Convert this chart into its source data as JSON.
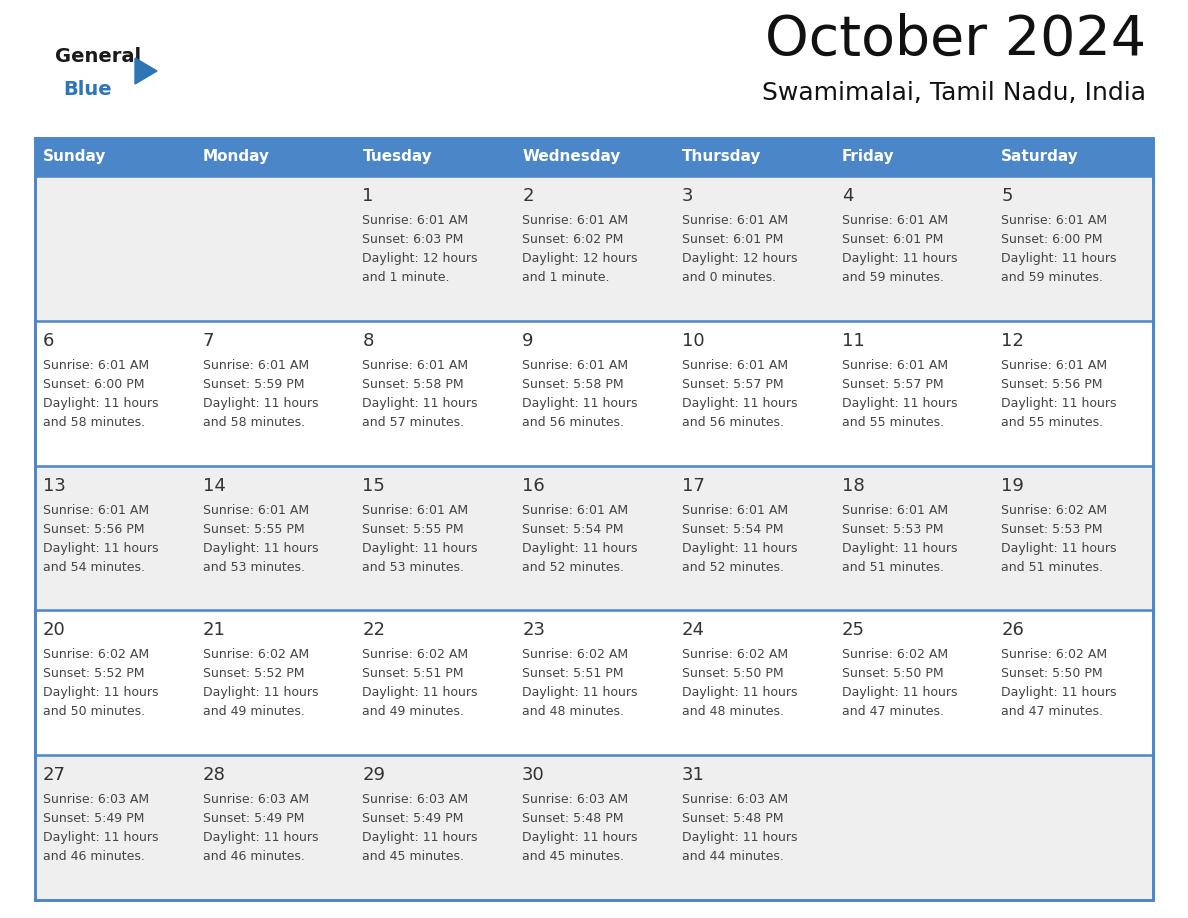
{
  "title": "October 2024",
  "subtitle": "Swamimalai, Tamil Nadu, India",
  "days_of_week": [
    "Sunday",
    "Monday",
    "Tuesday",
    "Wednesday",
    "Thursday",
    "Friday",
    "Saturday"
  ],
  "header_bg": "#4A86C8",
  "header_text": "#FFFFFF",
  "cell_bg_row0": "#EFEFEF",
  "cell_bg_row1": "#FFFFFF",
  "cell_bg_row2": "#EFEFEF",
  "cell_bg_row3": "#FFFFFF",
  "cell_bg_row4": "#EFEFEF",
  "cell_border": "#4A86C8",
  "day_num_color": "#333333",
  "cell_text_color": "#444444",
  "title_color": "#111111",
  "subtitle_color": "#111111",
  "logo_general_color": "#1a1a1a",
  "logo_blue_color": "#2E75B6",
  "calendar": [
    [
      null,
      null,
      {
        "day": "1",
        "sunrise": "6:01 AM",
        "sunset": "6:03 PM",
        "daylight_line1": "Daylight: 12 hours",
        "daylight_line2": "and 1 minute."
      },
      {
        "day": "2",
        "sunrise": "6:01 AM",
        "sunset": "6:02 PM",
        "daylight_line1": "Daylight: 12 hours",
        "daylight_line2": "and 1 minute."
      },
      {
        "day": "3",
        "sunrise": "6:01 AM",
        "sunset": "6:01 PM",
        "daylight_line1": "Daylight: 12 hours",
        "daylight_line2": "and 0 minutes."
      },
      {
        "day": "4",
        "sunrise": "6:01 AM",
        "sunset": "6:01 PM",
        "daylight_line1": "Daylight: 11 hours",
        "daylight_line2": "and 59 minutes."
      },
      {
        "day": "5",
        "sunrise": "6:01 AM",
        "sunset": "6:00 PM",
        "daylight_line1": "Daylight: 11 hours",
        "daylight_line2": "and 59 minutes."
      }
    ],
    [
      {
        "day": "6",
        "sunrise": "6:01 AM",
        "sunset": "6:00 PM",
        "daylight_line1": "Daylight: 11 hours",
        "daylight_line2": "and 58 minutes."
      },
      {
        "day": "7",
        "sunrise": "6:01 AM",
        "sunset": "5:59 PM",
        "daylight_line1": "Daylight: 11 hours",
        "daylight_line2": "and 58 minutes."
      },
      {
        "day": "8",
        "sunrise": "6:01 AM",
        "sunset": "5:58 PM",
        "daylight_line1": "Daylight: 11 hours",
        "daylight_line2": "and 57 minutes."
      },
      {
        "day": "9",
        "sunrise": "6:01 AM",
        "sunset": "5:58 PM",
        "daylight_line1": "Daylight: 11 hours",
        "daylight_line2": "and 56 minutes."
      },
      {
        "day": "10",
        "sunrise": "6:01 AM",
        "sunset": "5:57 PM",
        "daylight_line1": "Daylight: 11 hours",
        "daylight_line2": "and 56 minutes."
      },
      {
        "day": "11",
        "sunrise": "6:01 AM",
        "sunset": "5:57 PM",
        "daylight_line1": "Daylight: 11 hours",
        "daylight_line2": "and 55 minutes."
      },
      {
        "day": "12",
        "sunrise": "6:01 AM",
        "sunset": "5:56 PM",
        "daylight_line1": "Daylight: 11 hours",
        "daylight_line2": "and 55 minutes."
      }
    ],
    [
      {
        "day": "13",
        "sunrise": "6:01 AM",
        "sunset": "5:56 PM",
        "daylight_line1": "Daylight: 11 hours",
        "daylight_line2": "and 54 minutes."
      },
      {
        "day": "14",
        "sunrise": "6:01 AM",
        "sunset": "5:55 PM",
        "daylight_line1": "Daylight: 11 hours",
        "daylight_line2": "and 53 minutes."
      },
      {
        "day": "15",
        "sunrise": "6:01 AM",
        "sunset": "5:55 PM",
        "daylight_line1": "Daylight: 11 hours",
        "daylight_line2": "and 53 minutes."
      },
      {
        "day": "16",
        "sunrise": "6:01 AM",
        "sunset": "5:54 PM",
        "daylight_line1": "Daylight: 11 hours",
        "daylight_line2": "and 52 minutes."
      },
      {
        "day": "17",
        "sunrise": "6:01 AM",
        "sunset": "5:54 PM",
        "daylight_line1": "Daylight: 11 hours",
        "daylight_line2": "and 52 minutes."
      },
      {
        "day": "18",
        "sunrise": "6:01 AM",
        "sunset": "5:53 PM",
        "daylight_line1": "Daylight: 11 hours",
        "daylight_line2": "and 51 minutes."
      },
      {
        "day": "19",
        "sunrise": "6:02 AM",
        "sunset": "5:53 PM",
        "daylight_line1": "Daylight: 11 hours",
        "daylight_line2": "and 51 minutes."
      }
    ],
    [
      {
        "day": "20",
        "sunrise": "6:02 AM",
        "sunset": "5:52 PM",
        "daylight_line1": "Daylight: 11 hours",
        "daylight_line2": "and 50 minutes."
      },
      {
        "day": "21",
        "sunrise": "6:02 AM",
        "sunset": "5:52 PM",
        "daylight_line1": "Daylight: 11 hours",
        "daylight_line2": "and 49 minutes."
      },
      {
        "day": "22",
        "sunrise": "6:02 AM",
        "sunset": "5:51 PM",
        "daylight_line1": "Daylight: 11 hours",
        "daylight_line2": "and 49 minutes."
      },
      {
        "day": "23",
        "sunrise": "6:02 AM",
        "sunset": "5:51 PM",
        "daylight_line1": "Daylight: 11 hours",
        "daylight_line2": "and 48 minutes."
      },
      {
        "day": "24",
        "sunrise": "6:02 AM",
        "sunset": "5:50 PM",
        "daylight_line1": "Daylight: 11 hours",
        "daylight_line2": "and 48 minutes."
      },
      {
        "day": "25",
        "sunrise": "6:02 AM",
        "sunset": "5:50 PM",
        "daylight_line1": "Daylight: 11 hours",
        "daylight_line2": "and 47 minutes."
      },
      {
        "day": "26",
        "sunrise": "6:02 AM",
        "sunset": "5:50 PM",
        "daylight_line1": "Daylight: 11 hours",
        "daylight_line2": "and 47 minutes."
      }
    ],
    [
      {
        "day": "27",
        "sunrise": "6:03 AM",
        "sunset": "5:49 PM",
        "daylight_line1": "Daylight: 11 hours",
        "daylight_line2": "and 46 minutes."
      },
      {
        "day": "28",
        "sunrise": "6:03 AM",
        "sunset": "5:49 PM",
        "daylight_line1": "Daylight: 11 hours",
        "daylight_line2": "and 46 minutes."
      },
      {
        "day": "29",
        "sunrise": "6:03 AM",
        "sunset": "5:49 PM",
        "daylight_line1": "Daylight: 11 hours",
        "daylight_line2": "and 45 minutes."
      },
      {
        "day": "30",
        "sunrise": "6:03 AM",
        "sunset": "5:48 PM",
        "daylight_line1": "Daylight: 11 hours",
        "daylight_line2": "and 45 minutes."
      },
      {
        "day": "31",
        "sunrise": "6:03 AM",
        "sunset": "5:48 PM",
        "daylight_line1": "Daylight: 11 hours",
        "daylight_line2": "and 44 minutes."
      },
      null,
      null
    ]
  ]
}
